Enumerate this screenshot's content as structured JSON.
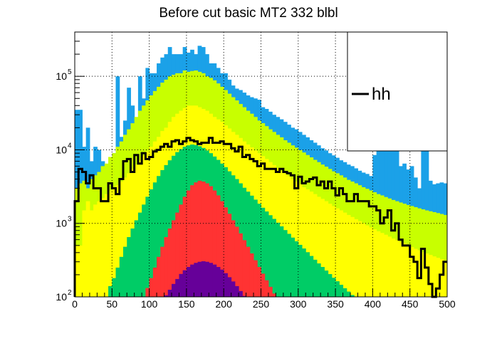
{
  "chart_data": {
    "type": "bar",
    "style": "stacked-histogram",
    "title": "Before cut basic MT2 332 blbl",
    "xlabel": "",
    "ylabel": "",
    "xlim": [
      0,
      500
    ],
    "ylim": [
      100,
      400000
    ],
    "yscale": "log",
    "grid": true,
    "legend_position": "top-right",
    "legend": [
      {
        "label": "hh",
        "style": "line",
        "color": "#000000"
      }
    ],
    "x_ticks": [
      0,
      50,
      100,
      150,
      200,
      250,
      300,
      350,
      400,
      450,
      500
    ],
    "y_ticks": [
      {
        "value": 100,
        "base": "10",
        "exp": "2"
      },
      {
        "value": 1000,
        "base": "10",
        "exp": "3"
      },
      {
        "value": 10000,
        "base": "10",
        "exp": "4"
      },
      {
        "value": 100000,
        "base": "10",
        "exp": "5"
      }
    ],
    "bin_width": 5,
    "bin_low_edges": [
      0,
      5,
      10,
      15,
      20,
      25,
      30,
      35,
      40,
      45,
      50,
      55,
      60,
      65,
      70,
      75,
      80,
      85,
      90,
      95,
      100,
      105,
      110,
      115,
      120,
      125,
      130,
      135,
      140,
      145,
      150,
      155,
      160,
      165,
      170,
      175,
      180,
      185,
      190,
      195,
      200,
      205,
      210,
      215,
      220,
      225,
      230,
      235,
      240,
      245,
      250,
      255,
      260,
      265,
      270,
      275,
      280,
      285,
      290,
      295,
      300,
      305,
      310,
      315,
      320,
      325,
      330,
      335,
      340,
      345,
      350,
      355,
      360,
      365,
      370,
      375,
      380,
      385,
      390,
      395,
      400,
      405,
      410,
      415,
      420,
      425,
      430,
      435,
      440,
      445,
      450,
      455,
      460,
      465,
      470,
      475,
      480,
      485,
      490,
      495
    ],
    "series": [
      {
        "name": "blue",
        "color": "#1ba1e8",
        "values": [
          35000,
          35000,
          11000,
          20000,
          7000,
          11000,
          10000,
          7000,
          4000,
          5000,
          9000,
          100000,
          15000,
          25000,
          70000,
          40000,
          20000,
          100000,
          50000,
          130000,
          110000,
          110000,
          150000,
          180000,
          200000,
          250000,
          200000,
          200000,
          200000,
          250000,
          210000,
          230000,
          200000,
          260000,
          250000,
          200000,
          150000,
          150000,
          130000,
          110000,
          110000,
          90000,
          75000,
          68000,
          65000,
          60000,
          55000,
          52000,
          50000,
          48000,
          38000,
          36000,
          33000,
          30000,
          28000,
          26000,
          24000,
          22000,
          20000,
          19000,
          17500,
          16000,
          14800,
          13500,
          12500,
          11500,
          10500,
          9800,
          9000,
          8400,
          7800,
          7200,
          6800,
          6300,
          6000,
          5600,
          5200,
          4900,
          4700,
          4400,
          8500,
          22000,
          21000,
          22000,
          14000,
          15000,
          17000,
          6000,
          6500,
          5400,
          6000,
          4200,
          3000,
          23000,
          12000,
          3800,
          3400,
          3500,
          3600,
          3500
        ]
      },
      {
        "name": "lime",
        "color": "#c8ff00",
        "values": [
          3000,
          3500,
          3800,
          3000,
          4000,
          4500,
          5000,
          6000,
          6500,
          8000,
          9000,
          11000,
          13000,
          16000,
          19000,
          23000,
          28000,
          34000,
          40000,
          47000,
          55000,
          63000,
          72000,
          82000,
          90000,
          100000,
          105000,
          110000,
          110000,
          120000,
          115000,
          118000,
          120000,
          115000,
          110000,
          100000,
          95000,
          88000,
          80000,
          72000,
          65000,
          58000,
          52000,
          47000,
          42000,
          38000,
          34000,
          31000,
          28000,
          25000,
          23000,
          21000,
          19000,
          17500,
          16000,
          14800,
          13500,
          12500,
          11500,
          10700,
          9900,
          9200,
          8500,
          7900,
          7300,
          6800,
          6300,
          5900,
          5500,
          5100,
          4800,
          4500,
          4200,
          3900,
          3700,
          3500,
          3300,
          3100,
          2950,
          2800,
          2650,
          2500,
          2400,
          2280,
          2180,
          2080,
          2000,
          1920,
          1850,
          1780,
          1720,
          1660,
          1600,
          1550,
          1500,
          1460,
          1420,
          1380,
          1340,
          1300
        ]
      },
      {
        "name": "yellow",
        "color": "#ffff00",
        "values": [
          500,
          500,
          1500,
          2000,
          1500,
          1800,
          2000,
          2200,
          2500,
          2800,
          3000,
          3300,
          3700,
          4200,
          4800,
          5500,
          6300,
          7200,
          8300,
          9500,
          11000,
          13000,
          15000,
          18000,
          20000,
          24000,
          28000,
          31000,
          34000,
          37000,
          40000,
          40000,
          40000,
          38000,
          36000,
          34000,
          31000,
          28000,
          26000,
          24000,
          21500,
          19500,
          17500,
          16000,
          14500,
          13000,
          11800,
          10800,
          9800,
          9000,
          8200,
          7500,
          6800,
          6200,
          5700,
          5200,
          4800,
          4400,
          4000,
          3700,
          3400,
          3100,
          2900,
          2700,
          2500,
          2300,
          2150,
          2000,
          1850,
          1720,
          1600,
          1500,
          1400,
          1300,
          1220,
          1140,
          1070,
          1000,
          940,
          880,
          830,
          780,
          740,
          700,
          660,
          620,
          590,
          560,
          530,
          500,
          475,
          450,
          430,
          410,
          390,
          372,
          355,
          340,
          325,
          310
        ]
      },
      {
        "name": "green",
        "color": "#00cc66",
        "values": [
          100,
          100,
          100,
          100,
          100,
          100,
          100,
          100,
          100,
          140,
          180,
          250,
          350,
          480,
          650,
          850,
          1100,
          1400,
          1800,
          2300,
          2900,
          3600,
          4400,
          5300,
          6200,
          7200,
          8300,
          9300,
          10200,
          11000,
          11500,
          11800,
          11600,
          11200,
          10600,
          9800,
          9000,
          8100,
          7300,
          6500,
          5800,
          5100,
          4500,
          4000,
          3500,
          3050,
          2700,
          2380,
          2100,
          1850,
          1630,
          1450,
          1290,
          1150,
          1020,
          910,
          810,
          720,
          640,
          570,
          510,
          455,
          405,
          360,
          320,
          285,
          255,
          228,
          204,
          182,
          163,
          146,
          131,
          118,
          106,
          100,
          100,
          100,
          100,
          100,
          100,
          100,
          100,
          100,
          100,
          100,
          100,
          100,
          100,
          100,
          100,
          100,
          100,
          100,
          100,
          100,
          100,
          100,
          100,
          100
        ]
      },
      {
        "name": "red",
        "color": "#ff3333",
        "values": [
          100,
          100,
          100,
          100,
          100,
          100,
          100,
          100,
          100,
          100,
          100,
          100,
          100,
          100,
          100,
          100,
          100,
          100,
          100,
          132,
          180,
          250,
          350,
          480,
          650,
          850,
          1100,
          1400,
          1800,
          2300,
          2800,
          3300,
          3600,
          3800,
          3700,
          3500,
          3200,
          2800,
          2400,
          2000,
          1650,
          1350,
          1100,
          900,
          730,
          590,
          480,
          390,
          315,
          255,
          207,
          168,
          137,
          111,
          100,
          100,
          100,
          100,
          100,
          100,
          100,
          100,
          100,
          100,
          100,
          100,
          100,
          100,
          100,
          100,
          100,
          100,
          100,
          100,
          100,
          100,
          100,
          100,
          100,
          100,
          100,
          100,
          100,
          100,
          100,
          100,
          100,
          100,
          100,
          100,
          100,
          100,
          100,
          100,
          100,
          100,
          100,
          100,
          100,
          100
        ]
      },
      {
        "name": "purple",
        "color": "#660099",
        "values": [
          100,
          100,
          100,
          100,
          100,
          100,
          100,
          100,
          100,
          100,
          100,
          100,
          100,
          100,
          100,
          100,
          100,
          100,
          100,
          100,
          100,
          100,
          100,
          100,
          105,
          125,
          150,
          175,
          205,
          230,
          255,
          275,
          290,
          300,
          305,
          300,
          290,
          275,
          255,
          235,
          210,
          185,
          162,
          140,
          120,
          103,
          100,
          100,
          100,
          100,
          100,
          100,
          100,
          100,
          100,
          100,
          100,
          100,
          100,
          100,
          100,
          100,
          100,
          100,
          100,
          100,
          100,
          100,
          100,
          100,
          100,
          100,
          100,
          100,
          100,
          100,
          100,
          100,
          100,
          100,
          100,
          100,
          100,
          100,
          100,
          100,
          100,
          100,
          100,
          100,
          100,
          100,
          100,
          100,
          100,
          100,
          100,
          100,
          100,
          100
        ]
      },
      {
        "name": "hh",
        "color": "#000000",
        "style": "step-line",
        "values": [
          2000,
          5500,
          5000,
          3500,
          4500,
          3000,
          3000,
          2000,
          2000,
          3500,
          3000,
          2500,
          4000,
          7000,
          7500,
          5000,
          8500,
          6500,
          9000,
          7500,
          8000,
          9500,
          10000,
          11000,
          12000,
          11000,
          13000,
          13500,
          12000,
          13000,
          14500,
          13500,
          13000,
          12000,
          12500,
          12500,
          14500,
          12500,
          12500,
          13000,
          12000,
          12000,
          10500,
          9500,
          11000,
          8000,
          8500,
          7500,
          7000,
          6000,
          6500,
          5500,
          5500,
          5500,
          5000,
          5500,
          5000,
          4800,
          4500,
          3000,
          4300,
          3500,
          3700,
          4000,
          4200,
          3300,
          3700,
          3000,
          3700,
          3000,
          2400,
          3000,
          2500,
          2000,
          2000,
          2500,
          2000,
          2000,
          2000,
          1700,
          1700,
          1500,
          1000,
          1200,
          1500,
          800,
          1000,
          600,
          500,
          500,
          350,
          300,
          180,
          450,
          250,
          150,
          100,
          130,
          200,
          300
        ]
      }
    ]
  }
}
